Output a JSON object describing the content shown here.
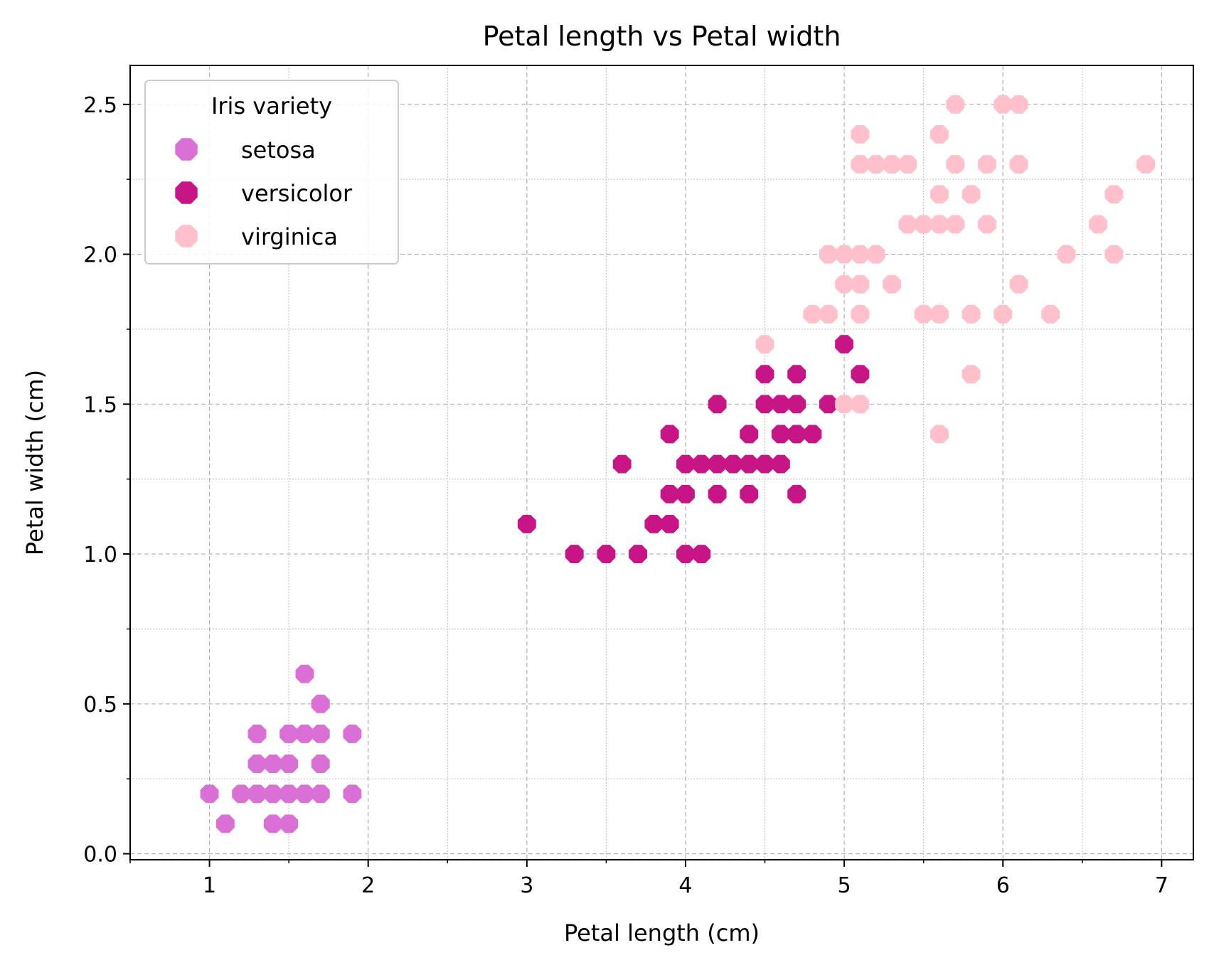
{
  "chart_data": {
    "type": "scatter",
    "title": "Petal length vs Petal width",
    "xlabel": "Petal length (cm)",
    "ylabel": "Petal width (cm)",
    "xlim": [
      0.5,
      7.2
    ],
    "ylim": [
      -0.02,
      2.63
    ],
    "xticks": [
      1,
      2,
      3,
      4,
      5,
      6,
      7
    ],
    "xtick_labels": [
      "1",
      "2",
      "3",
      "4",
      "5",
      "6",
      "7"
    ],
    "yticks": [
      0.0,
      0.5,
      1.0,
      1.5,
      2.0,
      2.5
    ],
    "ytick_labels": [
      "0.0",
      "0.5",
      "1.0",
      "1.5",
      "2.0",
      "2.5"
    ],
    "x_minor_step": 0.5,
    "y_minor_step": 0.25,
    "grid": true,
    "legend": {
      "title": "Iris variety",
      "placement": "top-left"
    },
    "series": [
      {
        "name": "setosa",
        "color": "#DA70D6",
        "points": [
          [
            1.0,
            0.2
          ],
          [
            1.1,
            0.1
          ],
          [
            1.2,
            0.2
          ],
          [
            1.3,
            0.2
          ],
          [
            1.3,
            0.3
          ],
          [
            1.3,
            0.4
          ],
          [
            1.4,
            0.1
          ],
          [
            1.4,
            0.2
          ],
          [
            1.4,
            0.3
          ],
          [
            1.5,
            0.1
          ],
          [
            1.5,
            0.2
          ],
          [
            1.5,
            0.3
          ],
          [
            1.5,
            0.4
          ],
          [
            1.6,
            0.2
          ],
          [
            1.6,
            0.4
          ],
          [
            1.6,
            0.6
          ],
          [
            1.7,
            0.2
          ],
          [
            1.7,
            0.3
          ],
          [
            1.7,
            0.4
          ],
          [
            1.7,
            0.5
          ],
          [
            1.9,
            0.2
          ],
          [
            1.9,
            0.4
          ]
        ]
      },
      {
        "name": "versicolor",
        "color": "#C71585",
        "points": [
          [
            3.0,
            1.1
          ],
          [
            3.3,
            1.0
          ],
          [
            3.5,
            1.0
          ],
          [
            3.6,
            1.3
          ],
          [
            3.7,
            1.0
          ],
          [
            3.8,
            1.1
          ],
          [
            3.9,
            1.1
          ],
          [
            3.9,
            1.2
          ],
          [
            3.9,
            1.4
          ],
          [
            4.0,
            1.0
          ],
          [
            4.0,
            1.2
          ],
          [
            4.0,
            1.3
          ],
          [
            4.1,
            1.0
          ],
          [
            4.1,
            1.3
          ],
          [
            4.2,
            1.2
          ],
          [
            4.2,
            1.3
          ],
          [
            4.2,
            1.5
          ],
          [
            4.3,
            1.3
          ],
          [
            4.4,
            1.2
          ],
          [
            4.4,
            1.3
          ],
          [
            4.4,
            1.4
          ],
          [
            4.5,
            1.3
          ],
          [
            4.5,
            1.5
          ],
          [
            4.5,
            1.6
          ],
          [
            4.6,
            1.3
          ],
          [
            4.6,
            1.4
          ],
          [
            4.6,
            1.5
          ],
          [
            4.7,
            1.2
          ],
          [
            4.7,
            1.4
          ],
          [
            4.7,
            1.5
          ],
          [
            4.7,
            1.6
          ],
          [
            4.8,
            1.4
          ],
          [
            4.9,
            1.5
          ],
          [
            5.0,
            1.7
          ],
          [
            5.1,
            1.6
          ]
        ]
      },
      {
        "name": "virginica",
        "color": "#FFC0CB",
        "points": [
          [
            4.5,
            1.7
          ],
          [
            4.8,
            1.8
          ],
          [
            4.9,
            1.8
          ],
          [
            4.9,
            2.0
          ],
          [
            5.0,
            1.5
          ],
          [
            5.0,
            1.9
          ],
          [
            5.0,
            2.0
          ],
          [
            5.1,
            1.5
          ],
          [
            5.1,
            1.8
          ],
          [
            5.1,
            1.9
          ],
          [
            5.1,
            2.0
          ],
          [
            5.1,
            2.3
          ],
          [
            5.1,
            2.4
          ],
          [
            5.2,
            2.0
          ],
          [
            5.2,
            2.3
          ],
          [
            5.3,
            1.9
          ],
          [
            5.3,
            2.3
          ],
          [
            5.4,
            2.1
          ],
          [
            5.4,
            2.3
          ],
          [
            5.5,
            1.8
          ],
          [
            5.5,
            2.1
          ],
          [
            5.6,
            1.4
          ],
          [
            5.6,
            1.8
          ],
          [
            5.6,
            2.1
          ],
          [
            5.6,
            2.2
          ],
          [
            5.6,
            2.4
          ],
          [
            5.7,
            2.1
          ],
          [
            5.7,
            2.3
          ],
          [
            5.7,
            2.5
          ],
          [
            5.8,
            1.6
          ],
          [
            5.8,
            1.8
          ],
          [
            5.8,
            2.2
          ],
          [
            5.9,
            2.1
          ],
          [
            5.9,
            2.3
          ],
          [
            6.0,
            1.8
          ],
          [
            6.0,
            2.5
          ],
          [
            6.1,
            1.9
          ],
          [
            6.1,
            2.3
          ],
          [
            6.1,
            2.5
          ],
          [
            6.3,
            1.8
          ],
          [
            6.4,
            2.0
          ],
          [
            6.6,
            2.1
          ],
          [
            6.7,
            2.0
          ],
          [
            6.7,
            2.2
          ],
          [
            6.9,
            2.3
          ]
        ]
      }
    ]
  }
}
